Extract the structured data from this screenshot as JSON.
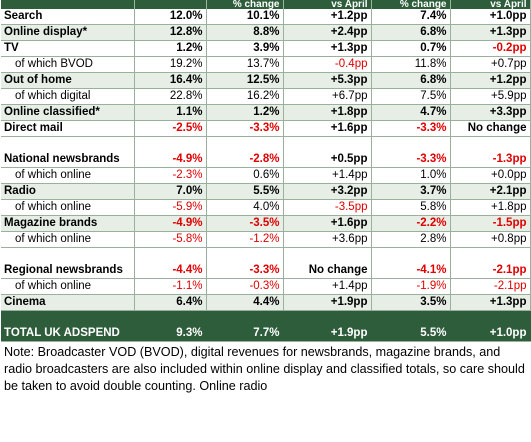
{
  "header": [
    "",
    "",
    "% change",
    "vs April",
    "% change",
    "vs April"
  ],
  "rows": [
    {
      "label": "Search",
      "cls": "main",
      "v": [
        "12.0%",
        "10.1%",
        "+1.2pp",
        "7.4%",
        "+1.0pp"
      ],
      "neg": [
        0,
        0,
        0,
        0,
        0
      ]
    },
    {
      "label": "Online display*",
      "cls": "main shade",
      "v": [
        "12.8%",
        "8.8%",
        "+2.4pp",
        "6.8%",
        "+1.3pp"
      ],
      "neg": [
        0,
        0,
        0,
        0,
        0
      ]
    },
    {
      "label": "TV",
      "cls": "main",
      "v": [
        "1.2%",
        "3.9%",
        "+1.3pp",
        "0.7%",
        "-0.2pp"
      ],
      "neg": [
        0,
        0,
        0,
        0,
        1
      ]
    },
    {
      "label": "of which BVOD",
      "cls": "sub",
      "v": [
        "19.2%",
        "13.7%",
        "-0.4pp",
        "11.8%",
        "+0.7pp"
      ],
      "neg": [
        0,
        0,
        1,
        0,
        0
      ]
    },
    {
      "label": "Out of home",
      "cls": "main shade",
      "v": [
        "16.4%",
        "12.5%",
        "+5.3pp",
        "6.8%",
        "+1.2pp"
      ],
      "neg": [
        0,
        0,
        0,
        0,
        0
      ]
    },
    {
      "label": "of which digital",
      "cls": "sub",
      "v": [
        "22.8%",
        "16.2%",
        "+6.7pp",
        "7.5%",
        "+5.9pp"
      ],
      "neg": [
        0,
        0,
        0,
        0,
        0
      ]
    },
    {
      "label": "Online classified*",
      "cls": "main shade",
      "v": [
        "1.1%",
        "1.2%",
        "+1.8pp",
        "4.7%",
        "+3.3pp"
      ],
      "neg": [
        0,
        0,
        0,
        0,
        0
      ]
    },
    {
      "label": "Direct mail",
      "cls": "main",
      "v": [
        "-2.5%",
        "-3.3%",
        "+1.6pp",
        "-3.3%",
        "No change"
      ],
      "neg": [
        1,
        1,
        0,
        1,
        0
      ]
    },
    {
      "label": "National newsbrands",
      "cls": "main tall",
      "v": [
        "-4.9%",
        "-2.8%",
        "+0.5pp",
        "-3.3%",
        "-1.3pp"
      ],
      "neg": [
        1,
        1,
        0,
        1,
        1
      ]
    },
    {
      "label": "of which online",
      "cls": "sub",
      "v": [
        "-2.3%",
        "0.6%",
        "+1.4pp",
        "1.0%",
        "+0.0pp"
      ],
      "neg": [
        1,
        0,
        0,
        0,
        0
      ]
    },
    {
      "label": "Radio",
      "cls": "main shade",
      "v": [
        "7.0%",
        "5.5%",
        "+3.2pp",
        "3.7%",
        "+2.1pp"
      ],
      "neg": [
        0,
        0,
        0,
        0,
        0
      ]
    },
    {
      "label": "of which online",
      "cls": "sub",
      "v": [
        "-5.9%",
        "4.0%",
        "-3.5pp",
        "5.8%",
        "+1.8pp"
      ],
      "neg": [
        1,
        0,
        1,
        0,
        0
      ]
    },
    {
      "label": "Magazine brands",
      "cls": "main shade",
      "v": [
        "-4.9%",
        "-3.5%",
        "+1.6pp",
        "-2.2%",
        "-1.5pp"
      ],
      "neg": [
        1,
        1,
        0,
        1,
        1
      ]
    },
    {
      "label": "of which online",
      "cls": "sub",
      "v": [
        "-5.8%",
        "-1.2%",
        "+3.6pp",
        "2.8%",
        "+0.8pp"
      ],
      "neg": [
        1,
        1,
        0,
        0,
        0
      ]
    },
    {
      "label": "Regional newsbrands",
      "cls": "main tall",
      "v": [
        "-4.4%",
        "-3.3%",
        "No change",
        "-4.1%",
        "-2.1pp"
      ],
      "neg": [
        1,
        1,
        0,
        1,
        1
      ]
    },
    {
      "label": "of which online",
      "cls": "sub",
      "v": [
        "-1.1%",
        "-0.3%",
        "+1.4pp",
        "-1.9%",
        "-2.1pp"
      ],
      "neg": [
        1,
        1,
        0,
        1,
        1
      ]
    },
    {
      "label": "Cinema",
      "cls": "main shade",
      "v": [
        "6.4%",
        "4.4%",
        "+1.9pp",
        "3.5%",
        "+1.3pp"
      ],
      "neg": [
        0,
        0,
        0,
        0,
        0
      ]
    }
  ],
  "total": {
    "label": "TOTAL UK ADSPEND",
    "v": [
      "9.3%",
      "7.7%",
      "+1.9pp",
      "5.5%",
      "+1.0pp"
    ]
  },
  "note": "Note: Broadcaster VOD (BVOD), digital revenues for newsbrands, magazine brands, and radio broadcasters are also included within online display and classified totals, so care should be taken to avoid double counting.  Online radio"
}
